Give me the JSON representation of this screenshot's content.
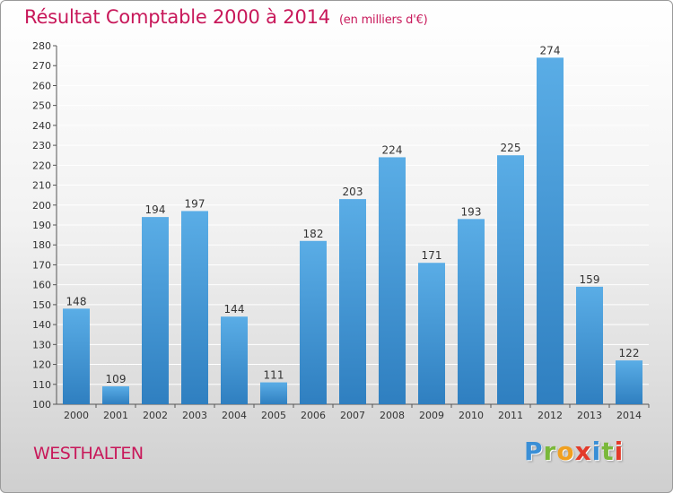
{
  "title": "Résultat Comptable 2000 à 2014",
  "unit": "(en milliers d'€)",
  "commune": "WESTHALTEN",
  "logo": {
    "letters": [
      "P",
      "r",
      "o",
      "x",
      "i",
      "t",
      "i"
    ],
    "colors": [
      "#3a8fd6",
      "#7ab83a",
      "#f0a020",
      "#e33a2a",
      "#3a8fd6",
      "#7ab83a",
      "#e33a2a"
    ]
  },
  "colors": {
    "bar_top": "#5aade6",
    "bar_bottom": "#2f7fc0",
    "title": "#c8185a"
  },
  "chart_data": {
    "type": "bar",
    "categories": [
      "2000",
      "2001",
      "2002",
      "2003",
      "2004",
      "2005",
      "2006",
      "2007",
      "2008",
      "2009",
      "2010",
      "2011",
      "2012",
      "2013",
      "2014"
    ],
    "values": [
      148,
      109,
      194,
      197,
      144,
      111,
      182,
      203,
      224,
      171,
      193,
      225,
      274,
      159,
      122
    ],
    "data_labels": [
      "148",
      "109",
      "194",
      "197",
      "144",
      "111",
      "182",
      "203",
      "224",
      "171",
      "193",
      "225",
      "274",
      "159",
      "122"
    ],
    "ylim": [
      100,
      280
    ],
    "yticks": [
      100,
      110,
      120,
      130,
      140,
      150,
      160,
      170,
      180,
      190,
      200,
      210,
      220,
      230,
      240,
      250,
      260,
      270,
      280
    ],
    "ytick_labels": [
      "100",
      "110",
      "120",
      "130",
      "140",
      "150",
      "160",
      "170",
      "180",
      "190",
      "200",
      "210",
      "220",
      "230",
      "240",
      "250",
      "260",
      "270",
      "280"
    ],
    "grid": true
  }
}
